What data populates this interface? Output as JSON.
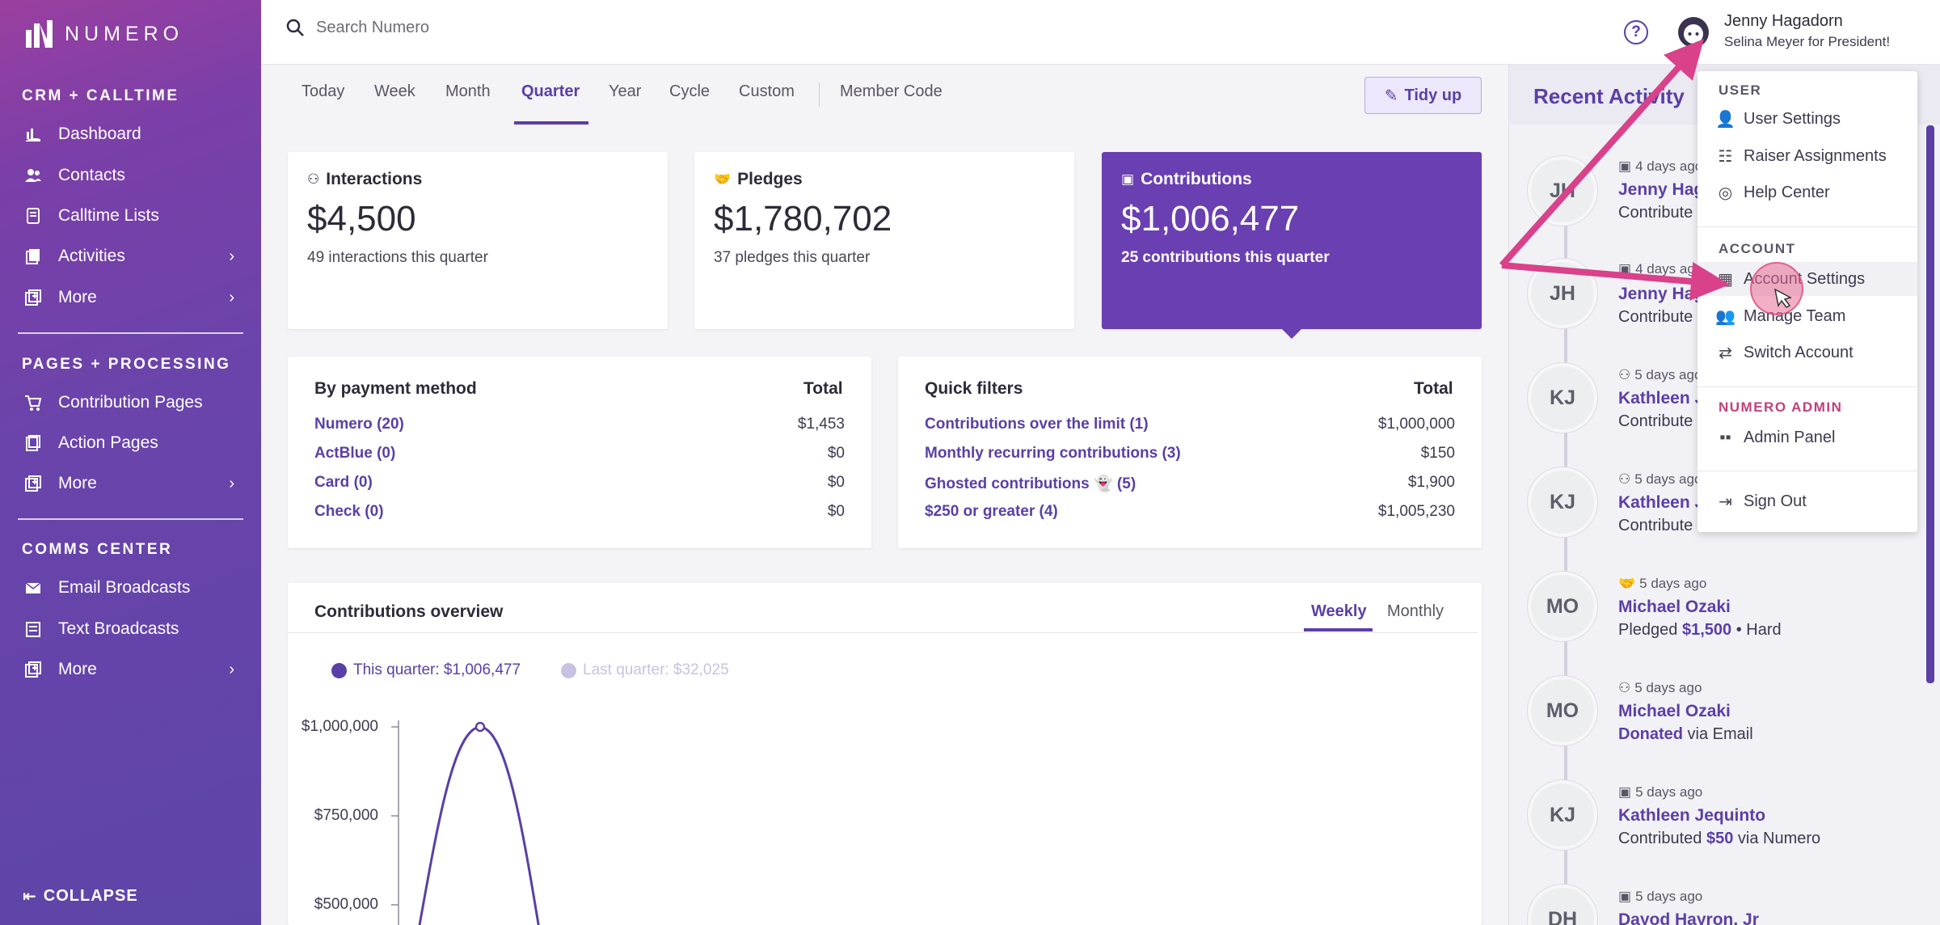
{
  "app": {
    "logo_text": "NUMERO"
  },
  "sidebar": {
    "sections": [
      {
        "label": "CRM + CALLTIME"
      },
      {
        "label": "PAGES + PROCESSING"
      },
      {
        "label": "COMMS CENTER"
      }
    ],
    "crm_items": [
      {
        "label": "Dashboard",
        "icon": "chart-hand-icon"
      },
      {
        "label": "Contacts",
        "icon": "people-icon"
      },
      {
        "label": "Calltime Lists",
        "icon": "phone-list-icon"
      },
      {
        "label": "Activities",
        "icon": "activities-icon"
      },
      {
        "label": "More",
        "icon": "plus-square-icon"
      }
    ],
    "pages_items": [
      {
        "label": "Contribution Pages",
        "icon": "cart-icon"
      },
      {
        "label": "Action Pages",
        "icon": "clipboard-icon"
      },
      {
        "label": "More",
        "icon": "plus-square-icon"
      }
    ],
    "comms_items": [
      {
        "label": "Email Broadcasts",
        "icon": "envelope-icon"
      },
      {
        "label": "Text Broadcasts",
        "icon": "message-icon"
      },
      {
        "label": "More",
        "icon": "plus-square-icon"
      }
    ],
    "collapse_label": "COLLAPSE"
  },
  "topbar": {
    "search_placeholder": "Search Numero",
    "help_label": "?",
    "user_name": "Jenny Hagadorn",
    "user_org": "Selina Meyer for President!"
  },
  "tabs": {
    "items": [
      "Today",
      "Week",
      "Month",
      "Quarter",
      "Year",
      "Cycle",
      "Custom"
    ],
    "active": "Quarter",
    "member_code": "Member Code",
    "tidy_label": "Tidy up"
  },
  "stats": [
    {
      "title": "Interactions",
      "value": "$4,500",
      "sub": "49 interactions this quarter",
      "icon": "interactions-icon"
    },
    {
      "title": "Pledges",
      "value": "$1,780,702",
      "sub": "37 pledges this quarter",
      "icon": "handshake-icon"
    },
    {
      "title": "Contributions",
      "value": "$1,006,477",
      "sub": "25 contributions this quarter",
      "icon": "money-icon"
    }
  ],
  "payment_method": {
    "title": "By payment method",
    "total_label": "Total",
    "rows": [
      {
        "label": "Numero (20)",
        "amount": "$1,453"
      },
      {
        "label": "ActBlue (0)",
        "amount": "$0"
      },
      {
        "label": "Card (0)",
        "amount": "$0"
      },
      {
        "label": "Check (0)",
        "amount": "$0"
      }
    ]
  },
  "quick_filters": {
    "title": "Quick filters",
    "total_label": "Total",
    "rows": [
      {
        "label": "Contributions over the limit (1)",
        "amount": "$1,000,000"
      },
      {
        "label": "Monthly recurring contributions (3)",
        "amount": "$150"
      },
      {
        "label": "Ghosted contributions 👻 (5)",
        "amount": "$1,900"
      },
      {
        "label": "$250 or greater (4)",
        "amount": "$1,005,230"
      }
    ]
  },
  "overview": {
    "title": "Contributions overview",
    "tabs": [
      "Weekly",
      "Monthly"
    ],
    "active_tab": "Weekly",
    "legend_this": "This quarter: $1,006,477",
    "legend_last": "Last quarter: $32,025",
    "colors": {
      "this": "#5b3fa6",
      "last": "#c9c1e3"
    }
  },
  "chart_data": {
    "type": "line",
    "title": "Contributions overview",
    "series": [
      {
        "name": "This quarter: $1,006,477"
      },
      {
        "name": "Last quarter: $32,025"
      }
    ],
    "y_ticks": [
      "$1,000,000",
      "$750,000",
      "$500,000"
    ],
    "peak_value": 1000000,
    "ylim": [
      0,
      1000000
    ]
  },
  "recent_activity": {
    "title": "Recent Activity",
    "items": [
      {
        "initials": "JH",
        "time": "4 days ago",
        "name": "Jenny Hag",
        "desc_pre": "Contribute",
        "desc_b": "",
        "desc_post": "",
        "icon": "money-icon"
      },
      {
        "initials": "JH",
        "time": "4 days ago",
        "name": "Jenny Hag",
        "desc_pre": "Contribute",
        "desc_b": "",
        "desc_post": "",
        "icon": "money-icon"
      },
      {
        "initials": "KJ",
        "time": "5 days ago",
        "name": "Kathleen J",
        "desc_pre": "Contribute",
        "desc_b": "",
        "desc_post": "",
        "icon": "interactions-icon"
      },
      {
        "initials": "KJ",
        "time": "5 days ago",
        "name": "Kathleen J",
        "desc_pre": "Contribute",
        "desc_b": "",
        "desc_post": "",
        "icon": "interactions-icon"
      },
      {
        "initials": "MO",
        "time": "5 days ago",
        "name": "Michael Ozaki",
        "desc_pre": "Pledged ",
        "desc_b": "$1,500",
        "desc_post": " • Hard",
        "icon": "handshake-icon"
      },
      {
        "initials": "MO",
        "time": "5 days ago",
        "name": "Michael Ozaki",
        "desc_pre": "",
        "desc_b": "Donated",
        "desc_post": " via Email",
        "icon": "interactions-icon"
      },
      {
        "initials": "KJ",
        "time": "5 days ago",
        "name": "Kathleen Jequinto",
        "desc_pre": "Contributed ",
        "desc_b": "$50",
        "desc_post": " via Numero",
        "icon": "money-icon"
      },
      {
        "initials": "DH",
        "time": "5 days ago",
        "name": "Dayod Hayron, Jr",
        "desc_pre": "",
        "desc_b": "",
        "desc_post": "",
        "icon": "money-icon"
      }
    ]
  },
  "dropdown": {
    "user_section": "USER",
    "user_items": [
      {
        "label": "User Settings",
        "icon": "user-gear-icon"
      },
      {
        "label": "Raiser Assignments",
        "icon": "assignments-icon"
      },
      {
        "label": "Help Center",
        "icon": "lifebuoy-icon"
      }
    ],
    "account_section": "ACCOUNT",
    "account_items": [
      {
        "label": "Account Settings",
        "icon": "building-gear-icon"
      },
      {
        "label": "Manage Team",
        "icon": "team-icon"
      },
      {
        "label": "Switch Account",
        "icon": "switch-icon"
      }
    ],
    "admin_section": "NUMERO ADMIN",
    "admin_items": [
      {
        "label": "Admin Panel",
        "icon": "grid-icon"
      }
    ],
    "sign_out": "Sign Out"
  },
  "colors": {
    "accent": "#5b3fa6",
    "annotation": "#d9418a"
  }
}
